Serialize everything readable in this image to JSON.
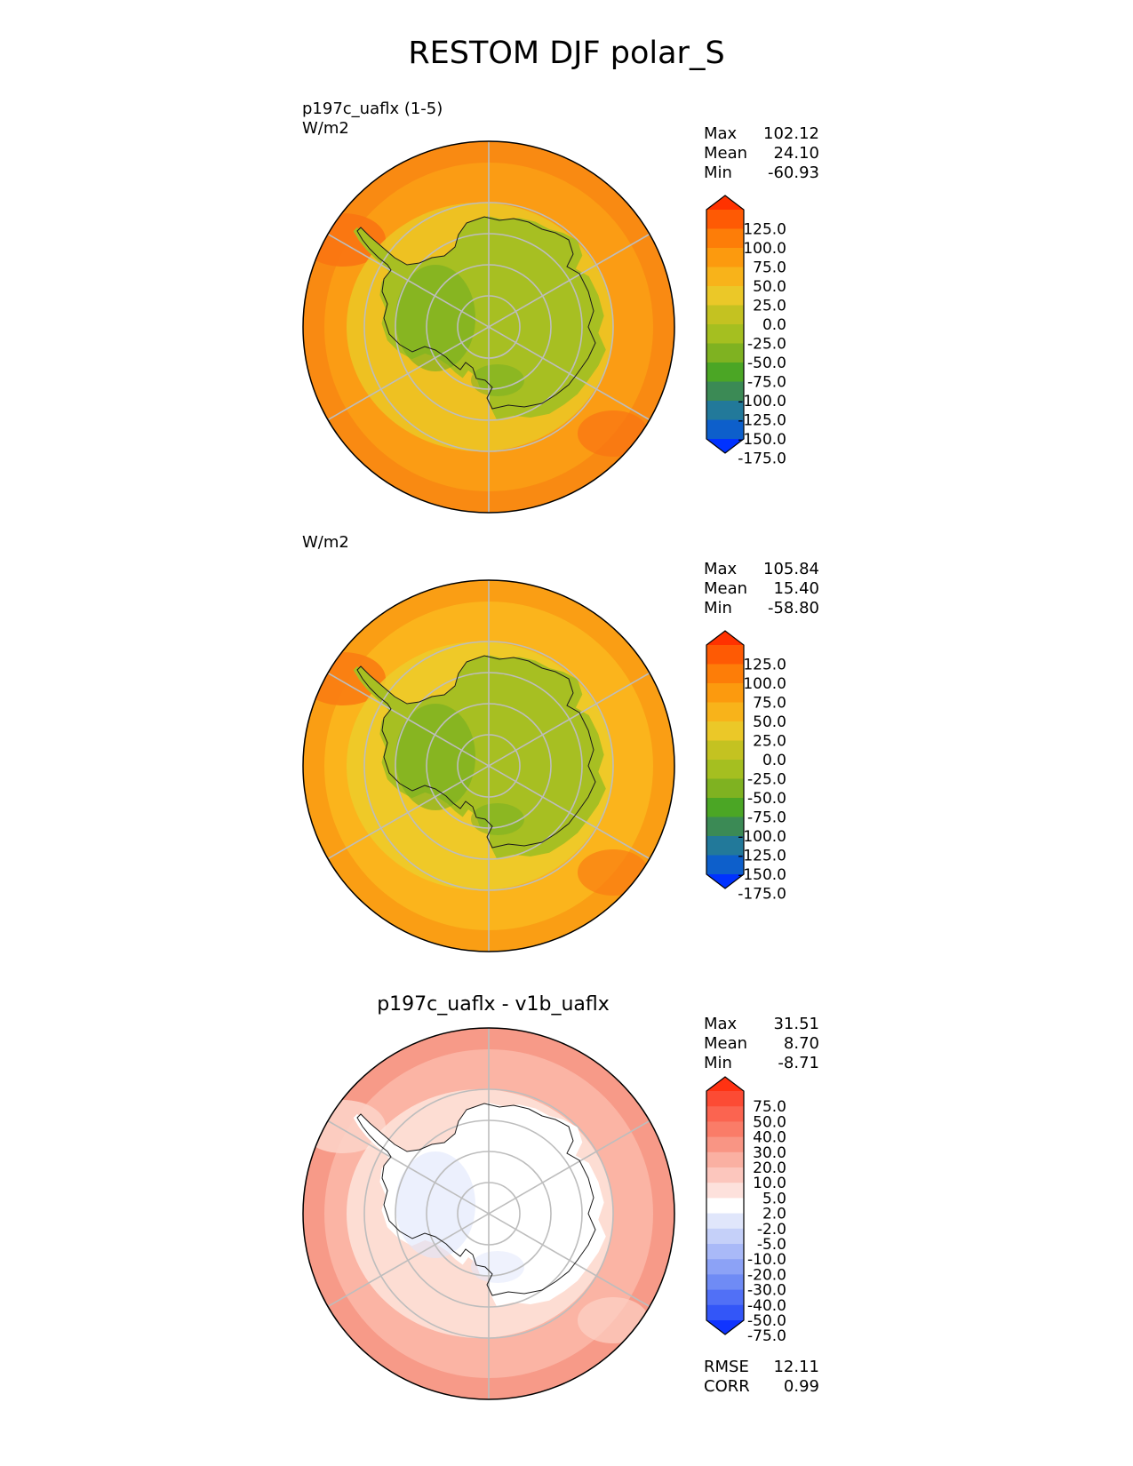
{
  "title": "RESTOM DJF polar_S",
  "panels": [
    {
      "id": "test",
      "label_line1": "p197c_uaflx (1-5)",
      "label_line2": "W/m2",
      "subtitle": "",
      "stats": {
        "max_label": "Max",
        "max": "102.12",
        "mean_label": "Mean",
        "mean": "24.10",
        "min_label": "Min",
        "min": "-60.93"
      },
      "colors": {
        "ocean": "#fb9c14",
        "ocean_outer": "#f98a12",
        "edge": "#f97412",
        "ring": "#ebc824",
        "ice": "#a7bf22",
        "ice_dark": "#72af22"
      },
      "colorbar": {
        "levels": [
          "125.0",
          "100.0",
          "75.0",
          "50.0",
          "25.0",
          "0.0",
          "-25.0",
          "-50.0",
          "-75.0",
          "-100.0",
          "-125.0",
          "-150.0",
          "-175.0"
        ],
        "colors": [
          "#ff3200",
          "#fe5a04",
          "#fd7d08",
          "#fc9a0e",
          "#f8b31a",
          "#ebc828",
          "#c4c221",
          "#a5bf20",
          "#7fb221",
          "#4ba625",
          "#3b8a55",
          "#22799a",
          "#0d5fcb",
          "#0032ff"
        ]
      }
    },
    {
      "id": "ref",
      "label_line1": "W/m2",
      "label_line2": "",
      "subtitle": "",
      "stats": {
        "max_label": "Max",
        "max": "105.84",
        "mean_label": "Mean",
        "mean": "15.40",
        "min_label": "Min",
        "min": "-58.80"
      },
      "colors": {
        "ocean": "#fbb41c",
        "ocean_outer": "#fa9e14",
        "edge": "#f97c12",
        "ring": "#eccc2a",
        "ice": "#a7bf22",
        "ice_dark": "#72af22"
      },
      "colorbar": {
        "levels": [
          "125.0",
          "100.0",
          "75.0",
          "50.0",
          "25.0",
          "0.0",
          "-25.0",
          "-50.0",
          "-75.0",
          "-100.0",
          "-125.0",
          "-150.0",
          "-175.0"
        ],
        "colors": [
          "#ff3200",
          "#fe5a04",
          "#fd7d08",
          "#fc9a0e",
          "#f8b31a",
          "#ebc828",
          "#c4c221",
          "#a5bf20",
          "#7fb221",
          "#4ba625",
          "#3b8a55",
          "#22799a",
          "#0d5fcb",
          "#0032ff"
        ]
      }
    },
    {
      "id": "diff",
      "label_line1": "",
      "label_line2": "",
      "subtitle": "p197c_uaflx - v1b_uaflx",
      "stats": {
        "max_label": "Max",
        "max": "31.51",
        "mean_label": "Mean",
        "mean": "8.70",
        "min_label": "Min",
        "min": "-8.71"
      },
      "colors": {
        "ocean": "#fbb4a4",
        "ocean_outer": "#f79a88",
        "edge": "#fcd2c6",
        "ring": "#fde4dc",
        "ice": "#ffffff",
        "ice_dark": "#dfe6fb"
      },
      "colorbar": {
        "levels": [
          "75.0",
          "50.0",
          "40.0",
          "30.0",
          "20.0",
          "10.0",
          "5.0",
          "2.0",
          "-2.0",
          "-5.0",
          "-10.0",
          "-20.0",
          "-30.0",
          "-40.0",
          "-50.0",
          "-75.0"
        ],
        "colors": [
          "#ff3212",
          "#fc4b34",
          "#fb6450",
          "#fa7c68",
          "#f99584",
          "#fab0a2",
          "#fcc6bd",
          "#fde1dc",
          "#ffffff",
          "#e0e6fb",
          "#c5d0f9",
          "#a9b9f8",
          "#8ca2f6",
          "#6f8bf5",
          "#5170f6",
          "#3356f8",
          "#1034ff"
        ]
      }
    }
  ],
  "diff_metrics": {
    "rmse_label": "RMSE",
    "rmse": "12.11",
    "corr_label": "CORR",
    "corr": "0.99"
  },
  "chart_data": [
    {
      "type": "heatmap",
      "title": "p197c_uaflx (1-5)",
      "units": "W/m2",
      "projection": "south polar stereographic",
      "max": 102.12,
      "mean": 24.1,
      "min": -60.93,
      "levels": [
        125,
        100,
        75,
        50,
        25,
        0,
        -25,
        -50,
        -75,
        -100,
        -125,
        -150,
        -175
      ]
    },
    {
      "type": "heatmap",
      "title": "",
      "units": "W/m2",
      "projection": "south polar stereographic",
      "max": 105.84,
      "mean": 15.4,
      "min": -58.8,
      "levels": [
        125,
        100,
        75,
        50,
        25,
        0,
        -25,
        -50,
        -75,
        -100,
        -125,
        -150,
        -175
      ]
    },
    {
      "type": "heatmap",
      "title": "p197c_uaflx - v1b_uaflx",
      "projection": "south polar stereographic",
      "max": 31.51,
      "mean": 8.7,
      "min": -8.71,
      "rmse": 12.11,
      "corr": 0.99,
      "levels": [
        75,
        50,
        40,
        30,
        20,
        10,
        5,
        2,
        -2,
        -5,
        -10,
        -20,
        -30,
        -40,
        -50,
        -75
      ]
    }
  ]
}
